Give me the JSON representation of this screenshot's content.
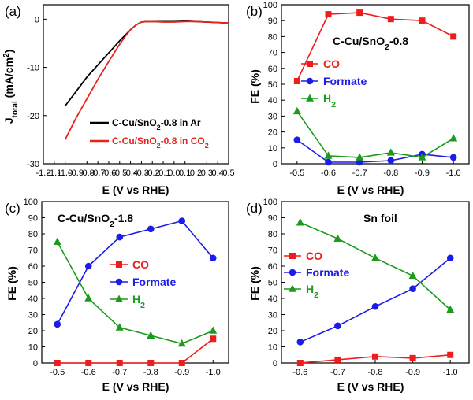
{
  "chart_data": [
    {
      "panel": "(a)",
      "type": "line",
      "xlabel": "E (V vs RHE)",
      "ylabel": "J",
      "ylabel_sub": "total",
      "ylabel_unit": " (mA/cm",
      "ylabel_sup": "2",
      "ylabel_end": ")",
      "xlim": [
        -1.2,
        0.5
      ],
      "ylim": [
        -30,
        3
      ],
      "xticks": [
        -1.2,
        -1.1,
        -1.0,
        -0.9,
        -0.8,
        -0.7,
        -0.6,
        -0.5,
        -0.4,
        -0.3,
        -0.2,
        -0.1,
        0.0,
        0.1,
        0.2,
        0.3,
        0.4,
        0.5
      ],
      "xtick_labels": [
        "-1.2",
        "-1.1",
        "-1.0",
        "-0.9",
        "-0.8",
        "-0.7",
        "-0.6",
        "-0.5",
        "-0.4",
        "-0.3",
        "-0.2",
        "-0.1",
        "0.0",
        "0.1",
        "0.2",
        "0.3",
        "0.4",
        "0.5"
      ],
      "yticks": [
        -30,
        -20,
        -10,
        0
      ],
      "ytick_labels": [
        "-30",
        "-20",
        "-10",
        "0"
      ],
      "series": [
        {
          "name_parts": [
            "C-Cu/SnO",
            "2",
            "-0.8 in Ar"
          ],
          "color": "#000000",
          "x": [
            -1.0,
            -0.9,
            -0.8,
            -0.7,
            -0.6,
            -0.5,
            -0.4,
            -0.35,
            -0.3,
            -0.25,
            -0.2,
            -0.1,
            0.0,
            0.1,
            0.2,
            0.3,
            0.4,
            0.5
          ],
          "y": [
            -18.0,
            -15.0,
            -12.0,
            -9.5,
            -7.0,
            -4.5,
            -2.2,
            -1.2,
            -0.6,
            -0.5,
            -0.5,
            -0.5,
            -0.5,
            -0.4,
            -0.5,
            -0.6,
            -0.7,
            -0.8
          ]
        },
        {
          "name_parts": [
            "C-Cu/SnO",
            "2",
            "-0.8 in CO",
            "2"
          ],
          "color": "#e8221c",
          "x": [
            -1.0,
            -0.9,
            -0.8,
            -0.7,
            -0.6,
            -0.5,
            -0.45,
            -0.4,
            -0.35,
            -0.3,
            -0.25,
            -0.2,
            -0.1,
            0.0,
            0.1,
            0.2,
            0.3,
            0.4,
            0.5
          ],
          "y": [
            -25.0,
            -20.5,
            -16.5,
            -12.5,
            -8.8,
            -5.2,
            -3.6,
            -2.2,
            -1.2,
            -0.6,
            -0.5,
            -0.5,
            -0.6,
            -0.6,
            -0.5,
            -0.5,
            -0.6,
            -0.7,
            -0.8
          ]
        }
      ]
    },
    {
      "panel": "(b)",
      "type": "line",
      "title_parts": [
        "C-Cu/SnO",
        "2",
        "-0.8"
      ],
      "xlabel": "E (V vs RHE)",
      "ylabel": "FE (%)",
      "ylim": [
        0,
        100
      ],
      "yticks": [
        0,
        10,
        20,
        30,
        40,
        50,
        60,
        70,
        80,
        90,
        100
      ],
      "ytick_labels": [
        "0",
        "10",
        "20",
        "30",
        "40",
        "50",
        "60",
        "70",
        "80",
        "90",
        "100"
      ],
      "x": [
        -0.5,
        -0.6,
        -0.7,
        -0.8,
        -0.9,
        -1.0
      ],
      "xtick_labels": [
        "-0.5",
        "-0.6",
        "-0.7",
        "-0.8",
        "-0.9",
        "-1.0"
      ],
      "series": [
        {
          "name_parts": [
            "CO"
          ],
          "color": "#ee1c1c",
          "marker": "square",
          "values": [
            52,
            94,
            95,
            91,
            90,
            80
          ]
        },
        {
          "name_parts": [
            "Formate"
          ],
          "color": "#1c1ce8",
          "marker": "circle",
          "values": [
            15,
            1,
            1,
            2,
            6,
            4
          ]
        },
        {
          "name_parts": [
            "H",
            "2"
          ],
          "color": "#1c9a1c",
          "marker": "triangle",
          "values": [
            33,
            5,
            4,
            7,
            4,
            16
          ]
        }
      ]
    },
    {
      "panel": "(c)",
      "type": "line",
      "title_parts": [
        "C-Cu/SnO",
        "2",
        "-1.8"
      ],
      "xlabel": "E (V vs RHE)",
      "ylabel": "FE (%)",
      "ylim": [
        0,
        100
      ],
      "yticks": [
        0,
        10,
        20,
        30,
        40,
        50,
        60,
        70,
        80,
        90,
        100
      ],
      "ytick_labels": [
        "0",
        "10",
        "20",
        "30",
        "40",
        "50",
        "60",
        "70",
        "80",
        "90",
        "100"
      ],
      "x": [
        -0.5,
        -0.6,
        -0.7,
        -0.8,
        -0.9,
        -1.0
      ],
      "xtick_labels": [
        "-0.5",
        "-0.6",
        "-0.7",
        "-0.8",
        "-0.9",
        "-1.0"
      ],
      "series": [
        {
          "name_parts": [
            "CO"
          ],
          "color": "#ee1c1c",
          "marker": "square",
          "values": [
            0,
            0,
            0,
            0,
            0,
            15
          ]
        },
        {
          "name_parts": [
            "Formate"
          ],
          "color": "#1c1ce8",
          "marker": "circle",
          "values": [
            24,
            60,
            78,
            83,
            88,
            65
          ]
        },
        {
          "name_parts": [
            "H",
            "2"
          ],
          "color": "#1c9a1c",
          "marker": "triangle",
          "values": [
            75,
            40,
            22,
            17,
            12,
            20
          ]
        }
      ]
    },
    {
      "panel": "(d)",
      "type": "line",
      "title_parts": [
        "Sn foil"
      ],
      "xlabel": "E (V vs RHE)",
      "ylabel": "FE (%)",
      "ylim": [
        0,
        100
      ],
      "yticks": [
        0,
        10,
        20,
        30,
        40,
        50,
        60,
        70,
        80,
        90,
        100
      ],
      "ytick_labels": [
        "0",
        "10",
        "20",
        "30",
        "40",
        "50",
        "60",
        "70",
        "80",
        "90",
        "100"
      ],
      "x": [
        -0.6,
        -0.7,
        -0.8,
        -0.9,
        -1.0
      ],
      "xtick_labels": [
        "-0.6",
        "-0.7",
        "-0.8",
        "-0.9",
        "-1.0"
      ],
      "series": [
        {
          "name_parts": [
            "CO"
          ],
          "color": "#ee1c1c",
          "marker": "square",
          "values": [
            0,
            2,
            4,
            3,
            5
          ]
        },
        {
          "name_parts": [
            "Formate"
          ],
          "color": "#1c1ce8",
          "marker": "circle",
          "values": [
            13,
            23,
            35,
            46,
            65
          ]
        },
        {
          "name_parts": [
            "H",
            "2"
          ],
          "color": "#1c9a1c",
          "marker": "triangle",
          "values": [
            87,
            77,
            65,
            54,
            33
          ]
        }
      ]
    }
  ]
}
